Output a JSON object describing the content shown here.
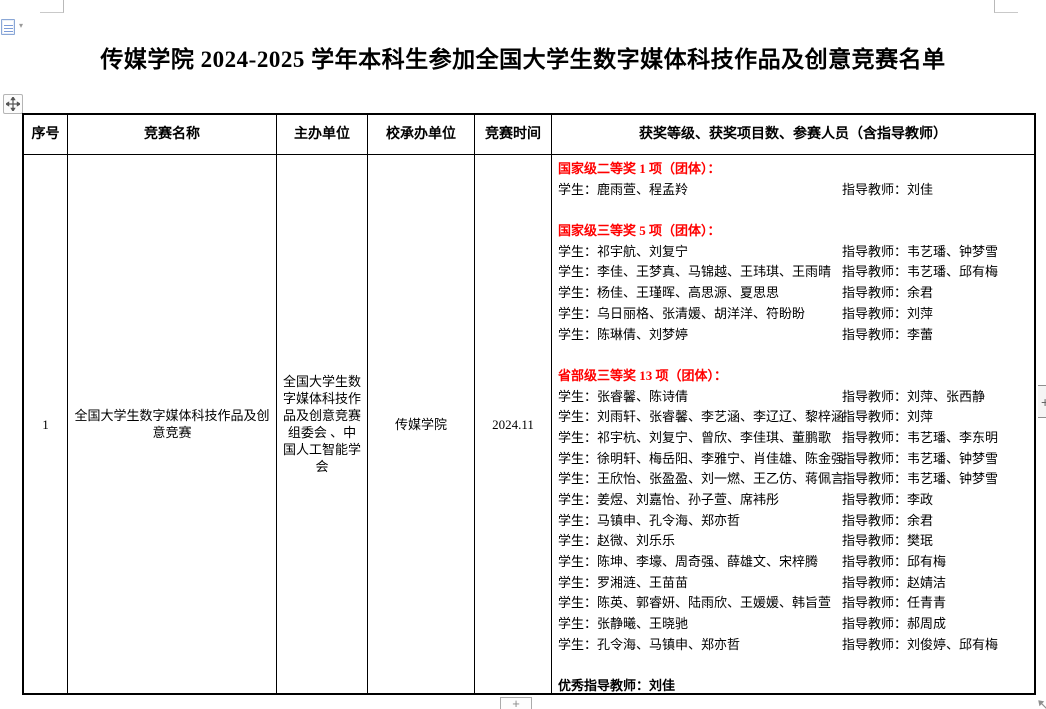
{
  "page": {
    "title": "传媒学院 2024-2025 学年本科生参加全国大学生数字媒体科技作品及创意竞赛名单"
  },
  "colors": {
    "heading_red": "#ff0000",
    "text": "#000000"
  },
  "decorations": {
    "paste_dropdown_glyph": "▾",
    "insert_col_glyph": "+",
    "insert_row_glyph": "+"
  },
  "table": {
    "headers": [
      "序号",
      "竞赛名称",
      "主办单位",
      "校承办单位",
      "竞赛时间",
      "获奖等级、获奖项目数、参赛人员（含指导教师）"
    ],
    "row": {
      "index": "1",
      "competition_name": "全国大学生数字媒体科技作品及创意竞赛",
      "organizer": "全国大学生数字媒体科技作品及创意竞赛组委会 、中国人工智能学会",
      "school_host": "传媒学院",
      "competition_time": "2024.11",
      "awards": {
        "sections": [
          {
            "heading": "国家级二等奖 1 项（团体）：",
            "entries": [
              {
                "students": "学生：鹿雨萱、程孟羚",
                "teachers": "指导教师：刘佳"
              }
            ]
          },
          {
            "heading": "国家级三等奖 5 项（团体）：",
            "entries": [
              {
                "students": "学生：祁宇航、刘复宁",
                "teachers": "指导教师：韦艺璠、钟梦雪"
              },
              {
                "students": "学生：李佳、王梦真、马锦越、王玮琪、王雨晴",
                "teachers": "指导教师：韦艺璠、邱有梅"
              },
              {
                "students": "学生：杨佳、王瑾晖、高思源、夏思思",
                "teachers": "指导教师：余君"
              },
              {
                "students": "学生：乌日丽格、张清媛、胡洋洋、符盼盼",
                "teachers": "指导教师：刘萍"
              },
              {
                "students": "学生：陈琳倩、刘梦婷",
                "teachers": "指导教师：李蕾"
              }
            ]
          },
          {
            "heading": "省部级三等奖 13 项（团体）：",
            "entries": [
              {
                "students": "学生：张睿馨、陈诗倩",
                "teachers": "指导教师：刘萍、张西静"
              },
              {
                "students": "学生：刘雨轩、张睿馨、李艺涵、李辽辽、黎梓涵",
                "teachers": "指导教师：刘萍"
              },
              {
                "students": "学生：祁宇杭、刘复宁、曾欣、李佳琪、董鹏歌",
                "teachers": "指导教师：韦艺璠、李东明"
              },
              {
                "students": "学生：徐明轩、梅岳阳、李雅宁、肖佳雄、陈金强",
                "teachers": "指导教师：韦艺璠、钟梦雪"
              },
              {
                "students": "学生：王欣怡、张盈盈、刘一燃、王乙仿、蒋佩言",
                "teachers": "指导教师：韦艺璠、钟梦雪"
              },
              {
                "students": "学生：姜煜、刘嘉怡、孙子萱、席袆彤",
                "teachers": "指导教师：李政"
              },
              {
                "students": "学生：马镇申、孔令海、郑亦哲",
                "teachers": "指导教师：余君"
              },
              {
                "students": "学生：赵微、刘乐乐",
                "teachers": "指导教师：樊珉"
              },
              {
                "students": "学生：陈坤、李壕、周奇强、薛雄文、宋梓腾",
                "teachers": "指导教师：邱有梅"
              },
              {
                "students": "学生：罗湘涟、王苗苗",
                "teachers": "指导教师：赵婧洁"
              },
              {
                "students": "学生：陈英、郭睿妍、陆雨欣、王媛媛、韩旨萱",
                "teachers": "指导教师：任青青"
              },
              {
                "students": "学生：张静曦、王晓驰",
                "teachers": "指导教师：郝周成"
              },
              {
                "students": "学生：孔令海、马镇申、郑亦哲",
                "teachers": "指导教师：刘俊婷、邱有梅"
              }
            ]
          }
        ],
        "footer": "优秀指导教师：刘佳"
      }
    }
  }
}
